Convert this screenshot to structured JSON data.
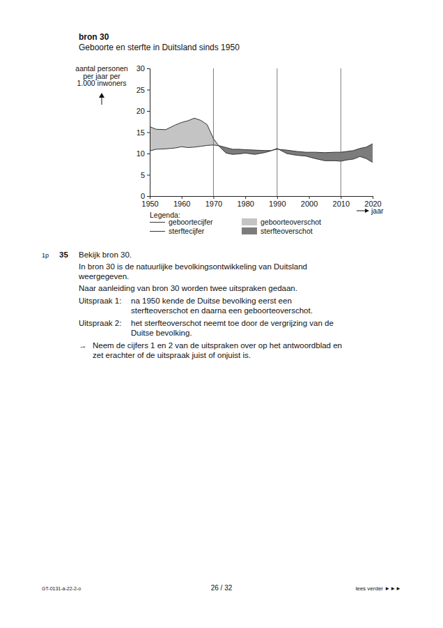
{
  "chart_data": {
    "type": "area",
    "title": "Geboorte en sterfte in Duitsland sinds 1950",
    "y_label": [
      "aantal personen",
      "per jaar per",
      "1.000 inwoners"
    ],
    "x_label": "jaar",
    "legend_title": "Legenda:",
    "x": [
      1950,
      1952,
      1955,
      1958,
      1960,
      1962,
      1964,
      1966,
      1968,
      1970,
      1972,
      1974,
      1976,
      1978,
      1980,
      1983,
      1986,
      1988,
      1990,
      1993,
      1996,
      1999,
      2002,
      2005,
      2008,
      2010,
      2012,
      2014,
      2016,
      2018,
      2020
    ],
    "series": [
      {
        "name": "geboortecijfer",
        "color": "#333333",
        "values": [
          16.3,
          15.7,
          15.6,
          16.7,
          17.3,
          17.7,
          18.3,
          17.8,
          16.8,
          13.5,
          11.5,
          10.1,
          9.8,
          9.9,
          10.1,
          9.8,
          10.2,
          10.6,
          11.2,
          10.0,
          9.6,
          9.4,
          8.8,
          8.3,
          8.3,
          8.2,
          8.5,
          8.7,
          9.3,
          8.8,
          7.9
        ]
      },
      {
        "name": "sterftecijfer",
        "color": "#333333",
        "values": [
          10.6,
          11.0,
          11.1,
          11.3,
          11.6,
          11.4,
          11.5,
          11.7,
          11.9,
          12.0,
          11.8,
          11.4,
          11.0,
          11.0,
          10.9,
          10.8,
          10.7,
          10.7,
          11.0,
          10.8,
          10.5,
          10.3,
          10.3,
          10.2,
          10.3,
          10.3,
          10.5,
          10.7,
          11.2,
          11.5,
          12.3
        ]
      }
    ],
    "areas": [
      {
        "name": "geboorteoverschot",
        "color": "#c4c4c4"
      },
      {
        "name": "sterfteoverschot",
        "color": "#7c7c7c"
      }
    ],
    "vlines": [
      1970,
      1990,
      2010
    ],
    "xlim": [
      1950,
      2020
    ],
    "xticks": [
      1950,
      1960,
      1970,
      1980,
      1990,
      2000,
      2010,
      2020
    ],
    "ylim": [
      0,
      30
    ],
    "yticks": [
      0,
      5,
      10,
      15,
      20,
      25,
      30
    ],
    "grid": false
  },
  "page": {
    "source": "bron 30",
    "question": {
      "points": "1p",
      "number": "35",
      "intro": [
        "Bekijk bron 30.",
        "In bron 30 is de natuurlijke bevolkingsontwikkeling van Duitsland",
        "weergegeven.",
        "Naar aanleiding van bron 30 worden twee uitspraken gedaan."
      ],
      "statements": [
        {
          "label": "Uitspraak 1:",
          "lines": [
            "na 1950 kende de Duitse bevolking eerst een",
            "sterfteoverschot en daarna een geboorteoverschot."
          ]
        },
        {
          "label": "Uitspraak 2:",
          "lines": [
            "het sterfteoverschot neemt toe door de vergrijzing van de",
            "Duitse bevolking."
          ]
        }
      ],
      "instruction": {
        "symbol": "→",
        "lines": [
          "Neem de cijfers 1 en 2 van de uitspraken over op het antwoordblad en",
          "zet erachter of de uitspraak juist of onjuist is."
        ]
      }
    },
    "footer": {
      "code": "GT-0131-a-22-2-o",
      "page": "26 / 32",
      "next": "lees verder ►►►"
    }
  }
}
